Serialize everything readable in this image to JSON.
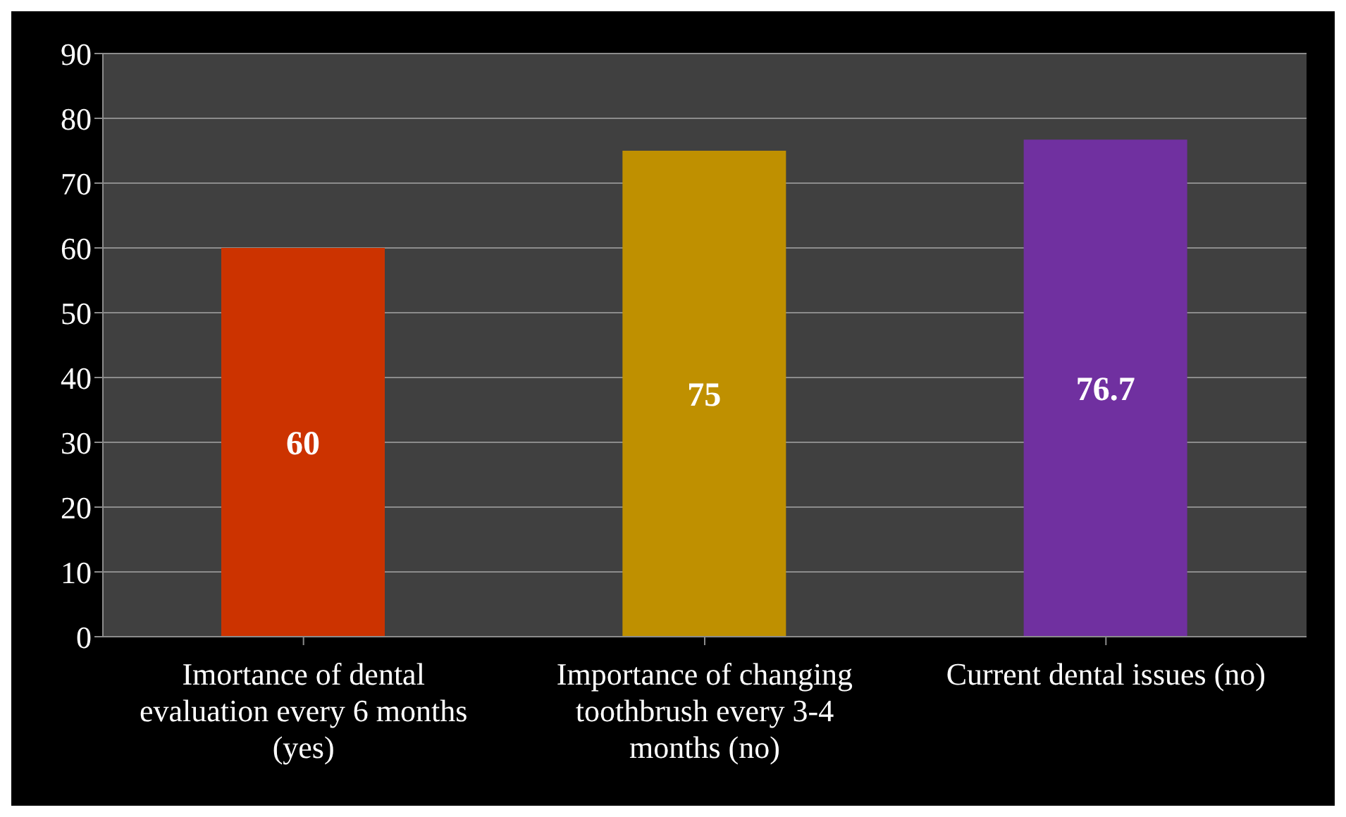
{
  "chart_data": {
    "type": "bar",
    "categories": [
      "Imortance of dental evaluation every 6 months (yes)",
      "Importance of changing toothbrush every 3-4 months (no)",
      "Current dental issues (no)"
    ],
    "values": [
      60,
      75,
      76.7
    ],
    "colors": [
      "#cc3300",
      "#bf9000",
      "#7030a0"
    ],
    "ylim": [
      0,
      90
    ],
    "yticks": [
      0,
      10,
      20,
      30,
      40,
      50,
      60,
      70,
      80,
      90
    ],
    "grid": "y",
    "data_labels": true
  }
}
